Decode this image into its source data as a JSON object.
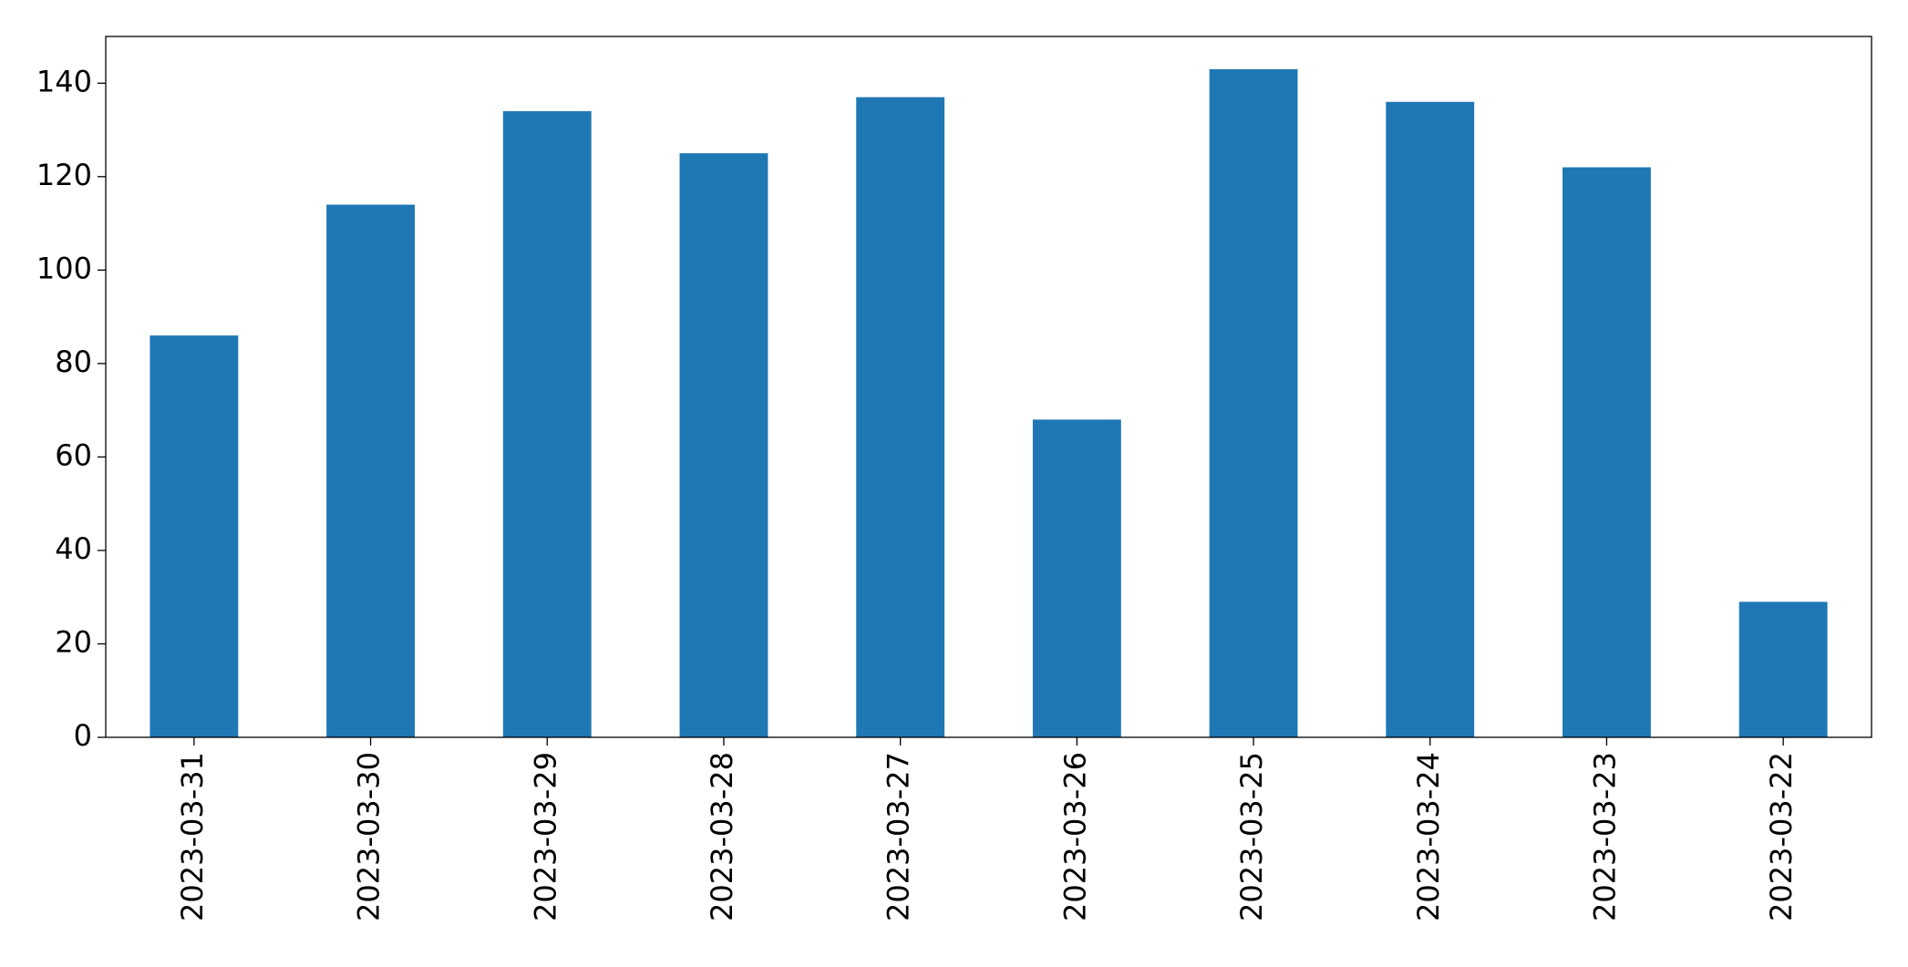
{
  "chart_data": {
    "type": "bar",
    "categories": [
      "2023-03-31",
      "2023-03-30",
      "2023-03-29",
      "2023-03-28",
      "2023-03-27",
      "2023-03-26",
      "2023-03-25",
      "2023-03-24",
      "2023-03-23",
      "2023-03-22"
    ],
    "values": [
      86,
      114,
      134,
      125,
      137,
      68,
      143,
      136,
      122,
      29
    ],
    "color": "#1f77b4",
    "ylim": [
      0,
      150
    ],
    "yticks": [
      0,
      20,
      40,
      60,
      80,
      100,
      120,
      140
    ],
    "grid": false
  }
}
